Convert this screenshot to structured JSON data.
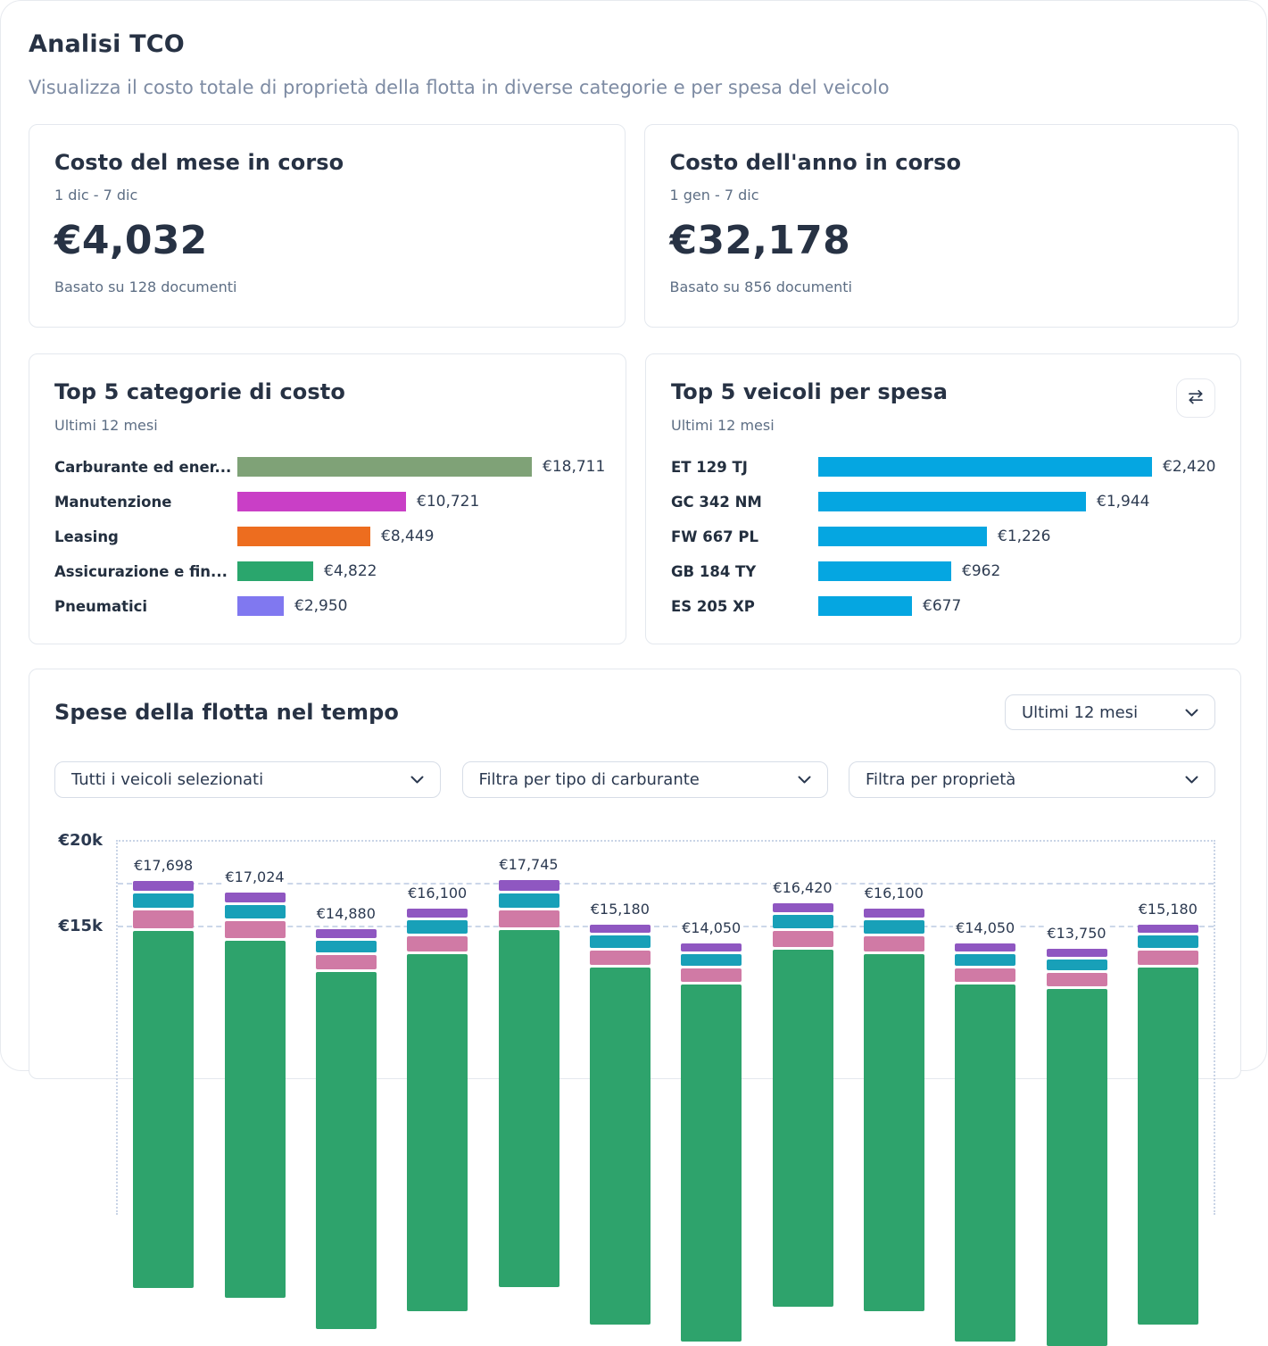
{
  "header": {
    "title": "Analisi TCO",
    "subtitle": "Visualizza il costo totale di proprietà della flotta in diverse categorie e per spesa del veicolo"
  },
  "cards": {
    "month": {
      "title": "Costo del mese in corso",
      "range": "1 dic - 7 dic",
      "amount": "€4,032",
      "basis": "Basato su 128 documenti"
    },
    "year": {
      "title": "Costo dell'anno in corso",
      "range": "1 gen - 7 dic",
      "amount": "€32,178",
      "basis": "Basato su 856 documenti"
    }
  },
  "top_categories": {
    "title": "Top 5 categorie di costo",
    "subtitle": "Ultimi 12 mesi"
  },
  "top_vehicles": {
    "title": "Top 5 veicoli per spesa",
    "subtitle": "Ultimi 12 mesi",
    "swap_icon": "swap-horizontal-icon"
  },
  "fleet": {
    "title": "Spese della flotta nel tempo",
    "period_select": "Ultimi 12 mesi",
    "filters": [
      "Tutti i veicoli selezionati",
      "Filtra per tipo di carburante",
      "Filtra per proprietà"
    ]
  },
  "chart_data": [
    {
      "type": "bar",
      "orientation": "horizontal",
      "title": "Top 5 categorie di costo",
      "subtitle": "Ultimi 12 mesi",
      "categories": [
        "Carburante ed ener...",
        "Manutenzione",
        "Leasing",
        "Assicurazione e fin...",
        "Pneumatici"
      ],
      "values": [
        18711,
        10721,
        8449,
        4822,
        2950
      ],
      "value_labels": [
        "€18,711",
        "€10,721",
        "€8,449",
        "€4,822",
        "€2,950"
      ],
      "colors": [
        "#7FA277",
        "#C93FC6",
        "#ED6D1F",
        "#2AA66D",
        "#8078F0"
      ],
      "xlim": [
        0,
        18711
      ],
      "grid": false,
      "value_label_position": "end"
    },
    {
      "type": "bar",
      "orientation": "horizontal",
      "title": "Top 5 veicoli per spesa",
      "subtitle": "Ultimi 12 mesi",
      "categories": [
        "ET 129 TJ",
        "GC 342 NM",
        "FW 667 PL",
        "GB 184 TY",
        "ES 205 XP"
      ],
      "values": [
        2420,
        1944,
        1226,
        962,
        677
      ],
      "value_labels": [
        "€2,420",
        "€1,944",
        "€1,226",
        "€962",
        "€677"
      ],
      "colors": [
        "#05A6E1",
        "#05A6E1",
        "#05A6E1",
        "#05A6E1",
        "#05A6E1"
      ],
      "xlim": [
        0,
        2420
      ],
      "grid": false,
      "value_label_position": "end"
    },
    {
      "type": "bar",
      "stacked": true,
      "title": "Spese della flotta nel tempo",
      "totals": [
        17698,
        17024,
        14880,
        16100,
        17745,
        15180,
        14050,
        16420,
        16100,
        14050,
        13750,
        15180
      ],
      "total_labels": [
        "€17,698",
        "€17,024",
        "€14,880",
        "€16,100",
        "€17,745",
        "€15,180",
        "€14,050",
        "€16,420",
        "€16,100",
        "€14,050",
        "€13,750",
        "€15,180"
      ],
      "y_ticks": [
        "€20k",
        "€15k"
      ],
      "ylim_top": 20000,
      "gridline_step_euro": 2500,
      "stack_colors_top_to_bottom": [
        "#8F57C1",
        "#18A0B8",
        "#D07AA5",
        "#2EA36C"
      ],
      "x_axis_labels_visible": false,
      "grid": "dashed-horizontal"
    }
  ]
}
